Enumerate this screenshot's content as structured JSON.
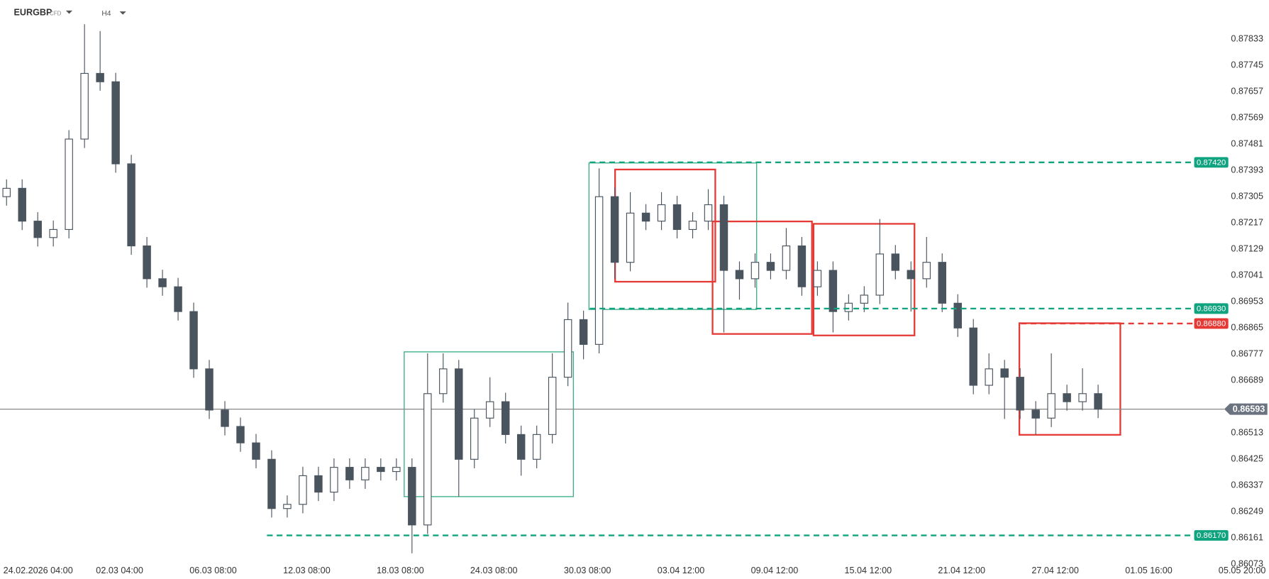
{
  "header": {
    "symbol": "EURGBP",
    "instrument": "CFD",
    "timeframe": "H4"
  },
  "chart_data": {
    "type": "candlestick",
    "up_color": "#ffffff",
    "down_color": "#4a545e",
    "wick_color": "#4a545e",
    "x": [
      -5,
      -1,
      3,
      7,
      11,
      15,
      19,
      23,
      27,
      31,
      35,
      39,
      43,
      47,
      51,
      55,
      59,
      63,
      67,
      71,
      75,
      79,
      83,
      87,
      91,
      95,
      99,
      103,
      107,
      111,
      115,
      119,
      123,
      127,
      131,
      135,
      139,
      143,
      147,
      151,
      155,
      159,
      163,
      167,
      171,
      175,
      179,
      183,
      187,
      191,
      195,
      199,
      203,
      207,
      211,
      215,
      219,
      223,
      227,
      231,
      235,
      239,
      243,
      247,
      251,
      255,
      259,
      263,
      267,
      271,
      275
    ],
    "open": [
      0.87305,
      0.87333,
      0.87223,
      0.87168,
      0.87195,
      0.87498,
      0.87718,
      0.8769,
      0.87415,
      0.8714,
      0.8703,
      0.87003,
      0.8692,
      0.86728,
      0.8659,
      0.86535,
      0.8648,
      0.86425,
      0.8626,
      0.86274,
      0.8637,
      0.86315,
      0.86398,
      0.86356,
      0.86398,
      0.86384,
      0.86398,
      0.86205,
      0.86645,
      0.86728,
      0.86425,
      0.86563,
      0.86618,
      0.86508,
      0.86425,
      0.86508,
      0.867,
      0.86893,
      0.8681,
      0.87305,
      0.87085,
      0.8725,
      0.87223,
      0.87278,
      0.87195,
      0.87223,
      0.87278,
      0.87058,
      0.8703,
      0.87085,
      0.87058,
      0.8714,
      0.87003,
      0.87058,
      0.8692,
      0.86948,
      0.86975,
      0.87113,
      0.87058,
      0.8703,
      0.87085,
      0.86948,
      0.86865,
      0.86673,
      0.86728,
      0.867,
      0.8659,
      0.86563,
      0.86645,
      0.86618,
      0.86645
    ],
    "high": [
      0.87363,
      0.87363,
      0.87253,
      0.87225,
      0.87528,
      0.87883,
      0.8786,
      0.8772,
      0.87445,
      0.8717,
      0.8706,
      0.87033,
      0.8695,
      0.86758,
      0.8662,
      0.86565,
      0.8651,
      0.86455,
      0.86304,
      0.864,
      0.864,
      0.86428,
      0.86428,
      0.86428,
      0.86428,
      0.86428,
      0.86428,
      0.8678,
      0.8678,
      0.86758,
      0.86593,
      0.867,
      0.86648,
      0.86538,
      0.86538,
      0.8678,
      0.8695,
      0.86923,
      0.874,
      0.87335,
      0.8732,
      0.8728,
      0.8732,
      0.87308,
      0.87253,
      0.8733,
      0.87308,
      0.87088,
      0.87115,
      0.87115,
      0.872,
      0.8717,
      0.87088,
      0.87088,
      0.86978,
      0.87005,
      0.8723,
      0.87143,
      0.87088,
      0.8717,
      0.87115,
      0.86978,
      0.86895,
      0.8678,
      0.86758,
      0.8673,
      0.8662,
      0.8678,
      0.86675,
      0.8673,
      0.86675
    ],
    "low": [
      0.87275,
      0.87193,
      0.87138,
      0.87138,
      0.87165,
      0.87468,
      0.8766,
      0.87385,
      0.8711,
      0.87,
      0.86973,
      0.8689,
      0.86698,
      0.8656,
      0.86505,
      0.8645,
      0.86395,
      0.8623,
      0.8623,
      0.86244,
      0.86285,
      0.86285,
      0.86326,
      0.86326,
      0.86354,
      0.86354,
      0.8611,
      0.86175,
      0.86615,
      0.863,
      0.86395,
      0.86533,
      0.86478,
      0.8637,
      0.86395,
      0.86478,
      0.8667,
      0.8676,
      0.8678,
      0.8703,
      0.87055,
      0.87193,
      0.87193,
      0.87165,
      0.87165,
      0.87193,
      0.8685,
      0.8696,
      0.87,
      0.87028,
      0.87028,
      0.86973,
      0.86973,
      0.8685,
      0.8689,
      0.86918,
      0.86945,
      0.87028,
      0.8692,
      0.87,
      0.86918,
      0.86835,
      0.86643,
      0.86643,
      0.8656,
      0.8656,
      0.86508,
      0.86533,
      0.86588,
      0.86588,
      0.86563
    ],
    "close": [
      0.87333,
      0.87223,
      0.87168,
      0.87195,
      0.87498,
      0.87718,
      0.8769,
      0.87415,
      0.8714,
      0.8703,
      0.87003,
      0.8692,
      0.86728,
      0.8659,
      0.86535,
      0.8648,
      0.86425,
      0.8626,
      0.86274,
      0.8637,
      0.86315,
      0.86398,
      0.86356,
      0.86398,
      0.86384,
      0.86398,
      0.86205,
      0.86645,
      0.86728,
      0.86425,
      0.86563,
      0.86618,
      0.86508,
      0.86425,
      0.86508,
      0.867,
      0.86893,
      0.8681,
      0.87305,
      0.87085,
      0.8725,
      0.87223,
      0.87278,
      0.87195,
      0.87223,
      0.87278,
      0.87058,
      0.8703,
      0.87085,
      0.87058,
      0.8714,
      0.87003,
      0.87058,
      0.8692,
      0.86948,
      0.86975,
      0.87113,
      0.87058,
      0.8703,
      0.87085,
      0.86948,
      0.86865,
      0.86673,
      0.86728,
      0.867,
      0.8659,
      0.86563,
      0.86645,
      0.86618,
      0.86645,
      0.86593
    ],
    "xlim": [
      -6.68,
      318
    ],
    "ylim": [
      0.86073,
      0.87964
    ],
    "xticks": [
      {
        "value": 0,
        "label": "24.02.2026 04:00"
      },
      {
        "value": 24,
        "label": "02.03 04:00"
      },
      {
        "value": 48,
        "label": "06.03 08:00"
      },
      {
        "value": 72,
        "label": "12.03 08:00"
      },
      {
        "value": 96,
        "label": "18.03 08:00"
      },
      {
        "value": 120,
        "label": "24.03 08:00"
      },
      {
        "value": 144,
        "label": "30.03 08:00"
      },
      {
        "value": 168,
        "label": "03.04 12:00"
      },
      {
        "value": 192,
        "label": "09.04 12:00"
      },
      {
        "value": 216,
        "label": "15.04 12:00"
      },
      {
        "value": 240,
        "label": "21.04 12:00"
      },
      {
        "value": 264,
        "label": "27.04 12:00"
      },
      {
        "value": 288,
        "label": "01.05 16:00"
      },
      {
        "value": 312,
        "label": "05.05 20:00"
      }
    ],
    "yticks": [
      0.87833,
      0.87745,
      0.87657,
      0.87569,
      0.87481,
      0.87393,
      0.87305,
      0.87217,
      0.87129,
      0.87041,
      0.86953,
      0.86865,
      0.86777,
      0.86689,
      0.86513,
      0.86425,
      0.86337,
      0.86249,
      0.86161,
      0.86073
    ],
    "current_price": 0.86593,
    "current_color": "#6b7280",
    "levels": [
      {
        "price": {
          "value": 0.8742,
          "label": "0.87420"
        },
        "start": 144.6,
        "color": "#10a37f"
      },
      {
        "price": {
          "value": 0.8693,
          "label": "0.86930"
        },
        "start": 144.6,
        "color": "#10a37f"
      },
      {
        "price": {
          "value": 0.8688,
          "label": "0.86880"
        },
        "start": 255.2,
        "color": "#e53935"
      },
      {
        "price": {
          "value": 0.8617,
          "label": "0.86170"
        },
        "start": 61.8,
        "color": "#10a37f"
      }
    ],
    "boxes": [
      {
        "x": [
          97.0,
          140.4
        ],
        "y": [
          0.86785,
          0.863
        ],
        "color": "#3fb08a"
      },
      {
        "x": [
          144.4,
          187.4
        ],
        "y": [
          0.87418,
          0.86927
        ],
        "color": "#3fb08a"
      },
      {
        "x": [
          151.1,
          176.8
        ],
        "y": [
          0.87396,
          0.8702
        ],
        "color": "#e53935"
      },
      {
        "x": [
          176.1,
          201.6
        ],
        "y": [
          0.87222,
          0.86845
        ],
        "color": "#e53935"
      },
      {
        "x": [
          202.0,
          227.9
        ],
        "y": [
          0.87214,
          0.8684
        ],
        "color": "#e53935"
      },
      {
        "x": [
          254.8,
          280.7
        ],
        "y": [
          0.86881,
          0.86507
        ],
        "color": "#e53935"
      }
    ]
  }
}
